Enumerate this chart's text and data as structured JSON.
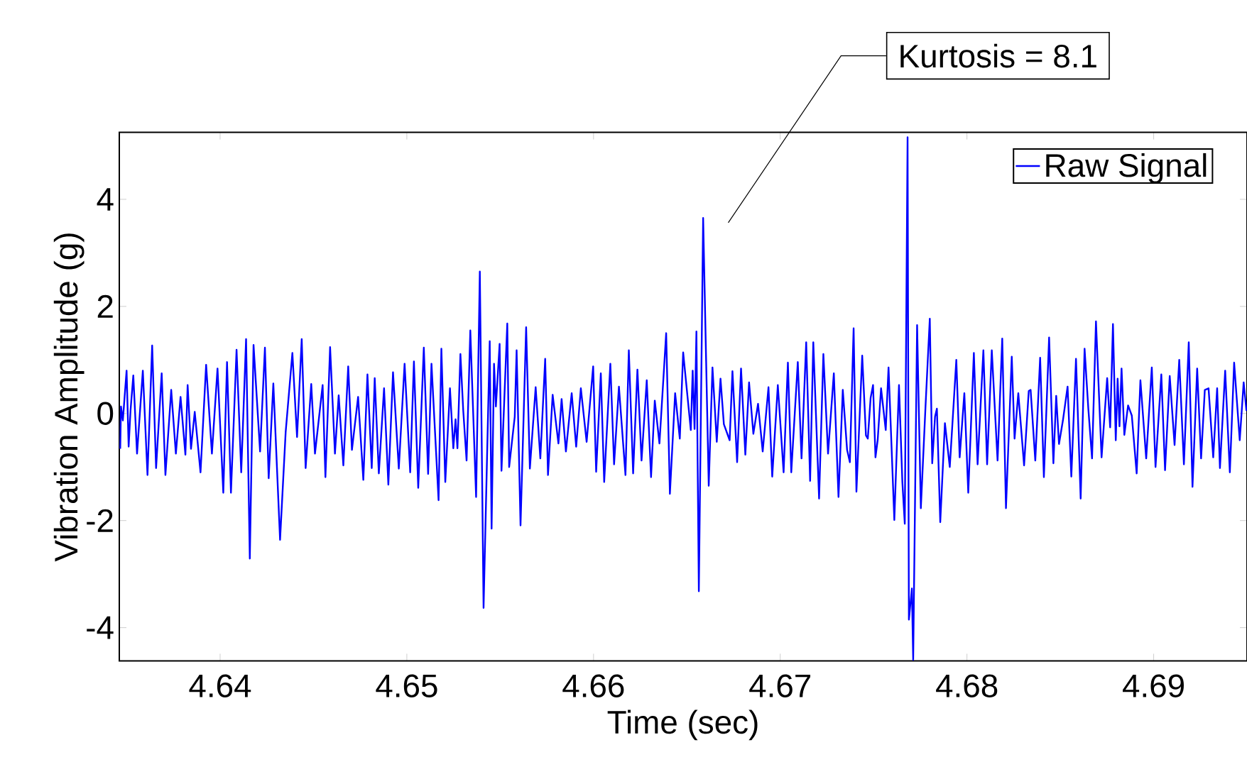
{
  "chart_data": {
    "type": "line",
    "xlabel": "Time (sec)",
    "ylabel": "Vibration Amplitude (g)",
    "annotations": [
      "Kurtosis = 8.1"
    ],
    "legend": "top right",
    "xlim": [
      4.6346,
      4.695
    ],
    "ylim": [
      -4.62,
      5.25
    ],
    "xticks": [
      4.64,
      4.65,
      4.66,
      4.67,
      4.68,
      4.69
    ],
    "yticks": [
      -4,
      -2,
      0,
      2,
      4
    ],
    "x": [
      4.63465,
      4.63469,
      4.63479,
      4.63499,
      4.6351,
      4.6352,
      4.63535,
      4.63555,
      4.63586,
      4.63611,
      4.63636,
      4.63657,
      4.63687,
      4.63707,
      4.63738,
      4.63763,
      4.63788,
      4.63814,
      4.63826,
      4.63844,
      4.63864,
      4.63895,
      4.63925,
      4.63956,
      4.63986,
      4.64017,
      4.64037,
      4.64058,
      4.64088,
      4.64113,
      4.64139,
      4.64159,
      4.64179,
      4.64214,
      4.6424,
      4.6426,
      4.64285,
      4.64321,
      4.64351,
      4.64387,
      4.64412,
      4.64437,
      4.64458,
      4.64488,
      4.64508,
      4.64549,
      4.64564,
      4.64589,
      4.64615,
      4.64635,
      4.6466,
      4.64686,
      4.64706,
      4.64739,
      4.64767,
      4.64789,
      4.64812,
      4.64828,
      4.6485,
      4.64878,
      4.64901,
      4.64926,
      4.64957,
      4.64988,
      4.65018,
      4.65038,
      4.65061,
      4.65091,
      4.65114,
      4.65132,
      4.6517,
      4.65185,
      4.65206,
      4.65231,
      4.65249,
      4.65261,
      4.65271,
      4.65287,
      4.65302,
      4.6532,
      4.6534,
      4.65371,
      4.65391,
      4.65411,
      4.65444,
      4.65454,
      4.65467,
      4.65477,
      4.65497,
      4.65507,
      4.65538,
      4.65548,
      4.65578,
      4.65588,
      4.65609,
      4.65639,
      4.65659,
      4.6569,
      4.65715,
      4.65741,
      4.65756,
      4.65781,
      4.65812,
      4.65829,
      4.65852,
      4.65883,
      4.65907,
      4.65932,
      4.65963,
      4.65998,
      4.66014,
      4.66039,
      4.66057,
      4.6609,
      4.6611,
      4.66136,
      4.66171,
      4.66189,
      4.66212,
      4.66235,
      4.66257,
      4.66285,
      4.66308,
      4.66328,
      4.66353,
      4.66389,
      4.66409,
      4.66437,
      4.66462,
      4.6648,
      4.66521,
      4.66531,
      4.66541,
      4.66551,
      4.66564,
      4.66587,
      4.66617,
      4.66637,
      4.6666,
      4.6668,
      4.66698,
      4.66729,
      4.66744,
      4.66769,
      4.6679,
      4.66813,
      4.66833,
      4.66856,
      4.66881,
      4.66906,
      4.66937,
      4.66957,
      4.66987,
      4.67018,
      4.67041,
      4.67059,
      4.67094,
      4.67114,
      4.67139,
      4.6716,
      4.67177,
      4.67208,
      4.67231,
      4.67256,
      4.67287,
      4.67312,
      4.67335,
      4.67358,
      4.67373,
      4.67393,
      4.67408,
      4.67439,
      4.67459,
      4.67469,
      4.67484,
      4.67497,
      4.6751,
      4.67522,
      4.6754,
      4.67565,
      4.6758,
      4.67611,
      4.67636,
      4.67654,
      4.67667,
      4.67682,
      4.67689,
      4.67705,
      4.67712,
      4.67733,
      4.67753,
      4.67778,
      4.67801,
      4.67814,
      4.67829,
      4.67839,
      4.67857,
      4.67882,
      4.67908,
      4.67943,
      4.67961,
      4.67986,
      4.68007,
      4.68037,
      4.68057,
      4.68088,
      4.68108,
      4.68133,
      4.68164,
      4.68189,
      4.68209,
      4.6824,
      4.68255,
      4.68275,
      4.68306,
      4.68331,
      4.68341,
      4.68366,
      4.68392,
      4.68412,
      4.6844,
      4.68463,
      4.68478,
      4.68493,
      4.68514,
      4.68539,
      4.68559,
      4.68584,
      4.68609,
      4.6863,
      4.6865,
      4.6867,
      4.68691,
      4.68721,
      4.68751,
      4.68767,
      4.68782,
      4.68797,
      4.68807,
      4.68817,
      4.68828,
      4.68843,
      4.68863,
      4.68883,
      4.68909,
      4.68929,
      4.6896,
      4.6899,
      4.6901,
      4.69041,
      4.69061,
      4.69086,
      4.69112,
      4.69137,
      4.69162,
      4.69188,
      4.69208,
      4.69233,
      4.69254,
      4.69274,
      4.69294,
      4.69319,
      4.6934,
      4.69355,
      4.69383,
      4.69408,
      4.69431,
      4.69461,
      4.69482,
      4.69497
    ],
    "series": [
      {
        "name": "Raw Signal",
        "color": "#0000ff",
        "values": [
          -0.66,
          0.13,
          -0.13,
          0.8,
          -0.62,
          0.05,
          0.71,
          -0.75,
          0.8,
          -1.15,
          1.27,
          -1.02,
          0.75,
          -1.15,
          0.44,
          -0.75,
          0.31,
          -0.77,
          0.53,
          -0.66,
          0.03,
          -1.1,
          0.91,
          -0.75,
          0.84,
          -1.48,
          0.96,
          -1.48,
          1.19,
          -1.1,
          1.39,
          -2.71,
          1.28,
          -0.71,
          1.23,
          -1.21,
          0.56,
          -2.36,
          -0.35,
          1.13,
          -0.44,
          1.39,
          -1.02,
          0.55,
          -0.75,
          0.53,
          -1.19,
          1.24,
          -0.75,
          0.34,
          -0.97,
          0.88,
          -0.68,
          0.31,
          -1.24,
          0.73,
          -1.02,
          0.66,
          -1.12,
          0.47,
          -1.33,
          0.77,
          -1.03,
          0.93,
          -1.1,
          0.97,
          -1.39,
          1.23,
          -1.13,
          0.93,
          -1.62,
          1.21,
          -1.28,
          0.47,
          -0.65,
          -0.11,
          -0.65,
          1.11,
          0.06,
          -0.88,
          1.55,
          -1.56,
          2.65,
          -3.63,
          1.35,
          -2.15,
          0.93,
          0.13,
          1.3,
          -1.07,
          1.68,
          -1.0,
          -0.06,
          1.18,
          -2.09,
          1.61,
          -1.03,
          0.49,
          -0.84,
          1.02,
          -1.15,
          0.35,
          -0.56,
          0.27,
          -0.71,
          0.38,
          -0.62,
          0.47,
          -0.53,
          0.88,
          -1.09,
          0.75,
          -1.28,
          0.93,
          -0.95,
          0.5,
          -1.15,
          1.18,
          -1.12,
          0.82,
          -0.88,
          0.62,
          -1.19,
          0.24,
          -0.56,
          1.5,
          -1.5,
          0.38,
          -0.47,
          1.14,
          -0.31,
          0.8,
          -0.29,
          1.53,
          -3.32,
          3.65,
          -1.35,
          0.86,
          -0.53,
          0.65,
          -0.2,
          -0.5,
          0.79,
          -0.91,
          0.84,
          -0.77,
          0.58,
          -0.38,
          0.18,
          -0.71,
          0.49,
          -1.18,
          0.53,
          -1.1,
          0.95,
          -1.1,
          0.96,
          -0.84,
          1.33,
          -1.26,
          1.33,
          -1.59,
          1.11,
          -0.75,
          0.75,
          -1.56,
          0.44,
          -0.68,
          -0.91,
          1.59,
          -1.46,
          1.08,
          -0.41,
          -0.47,
          0.29,
          0.53,
          -0.82,
          -0.49,
          0.47,
          -0.31,
          0.86,
          -1.99,
          0.53,
          -1.28,
          -2.06,
          5.16,
          -3.85,
          -3.27,
          -4.6,
          1.65,
          -1.77,
          0.13,
          1.77,
          -0.93,
          -0.06,
          0.09,
          -2.03,
          -0.18,
          -1.0,
          1.0,
          -0.82,
          0.38,
          -1.48,
          1.13,
          -0.95,
          1.18,
          -0.95,
          1.18,
          -0.88,
          1.4,
          -1.77,
          1.06,
          -0.47,
          0.38,
          -0.97,
          0.42,
          0.44,
          -0.88,
          1.04,
          -1.19,
          1.42,
          -0.93,
          0.33,
          -0.57,
          -0.13,
          0.5,
          -1.18,
          1.02,
          -1.59,
          1.21,
          0.09,
          -0.84,
          1.72,
          -0.82,
          0.66,
          -0.26,
          1.67,
          -0.5,
          0.65,
          -0.24,
          0.84,
          -0.4,
          0.15,
          -0.04,
          -1.12,
          0.62,
          -0.84,
          0.86,
          -1.0,
          0.73,
          -1.06,
          0.7,
          -0.59,
          1.0,
          -0.95,
          1.33,
          -1.37,
          0.84,
          -0.84,
          0.44,
          0.47,
          -0.82,
          0.47,
          -1.02,
          0.8,
          -1.1,
          0.95,
          -0.5,
          0.58,
          0.05
        ]
      }
    ]
  }
}
